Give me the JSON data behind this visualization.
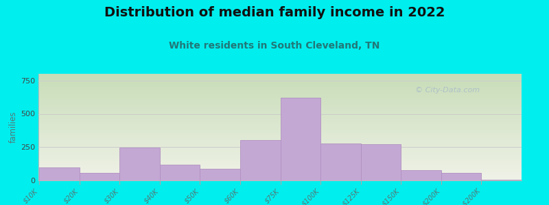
{
  "title": "Distribution of median family income in 2022",
  "subtitle": "White residents in South Cleveland, TN",
  "bin_edges_labels": [
    "$10K",
    "$20K",
    "$30K",
    "$40K",
    "$50K",
    "$60K",
    "$75K",
    "$100K",
    "$125K",
    "$150K",
    "$200K",
    "> $200K"
  ],
  "bar_values": [
    100,
    55,
    245,
    120,
    85,
    305,
    620,
    275,
    270,
    75,
    55,
    5
  ],
  "bar_color": "#C4A8D4",
  "bar_edge_color": "#B090C0",
  "ylim": [
    0,
    800
  ],
  "yticks": [
    0,
    250,
    500,
    750
  ],
  "ylabel": "families",
  "bg_color": "#00EEEE",
  "plot_bg_top_color": "#C8DDB8",
  "plot_bg_bottom_color": "#F0F2E8",
  "title_fontsize": 14,
  "subtitle_fontsize": 10,
  "watermark_text": "© City-Data.com",
  "watermark_color": "#AABBC8",
  "tick_color": "#557777",
  "tick_fontsize": 7
}
